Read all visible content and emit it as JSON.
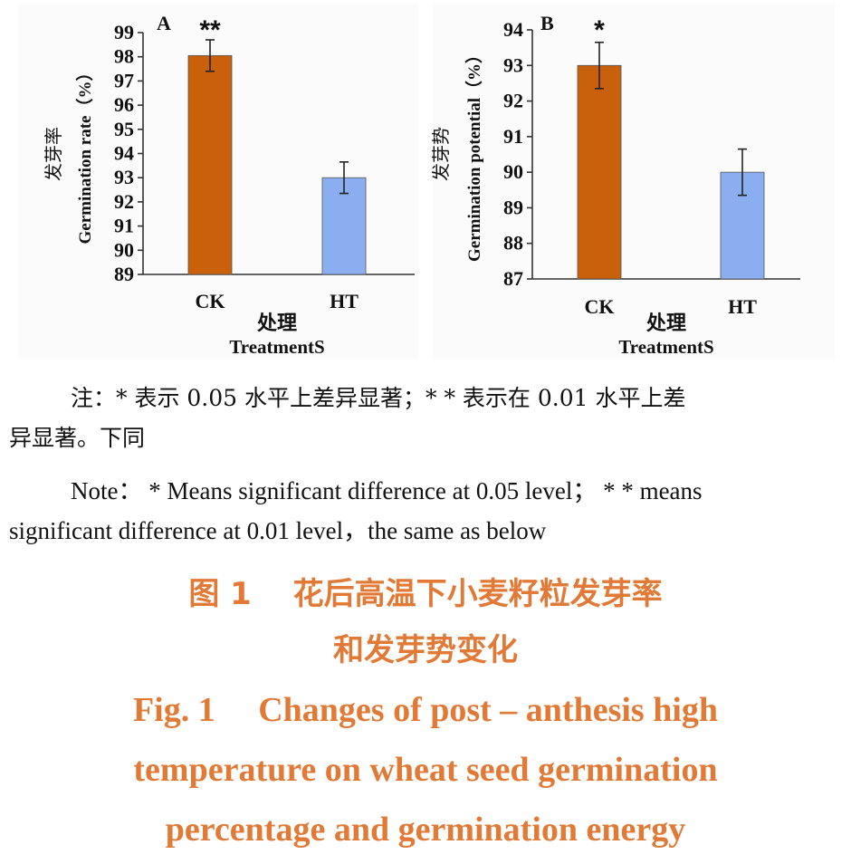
{
  "chart_data": [
    {
      "type": "bar",
      "panel": "A",
      "categories": [
        "CK",
        "HT"
      ],
      "values": [
        98.05,
        93.0
      ],
      "errors": [
        0.65,
        0.65
      ],
      "significance": [
        "**",
        ""
      ],
      "ylim": [
        89,
        99
      ],
      "yticks": [
        "99",
        "98",
        "97",
        "96",
        "95",
        "94",
        "93",
        "92",
        "91",
        "90",
        "89"
      ],
      "ylabel_zh": "发芽率",
      "ylabel": "Germination rate（%）",
      "xlabel_zh": "处理",
      "xlabel": "TreatmentS",
      "colors": [
        "#c8600c",
        "#8aaef0"
      ]
    },
    {
      "type": "bar",
      "panel": "B",
      "categories": [
        "CK",
        "HT"
      ],
      "values": [
        93.0,
        90.0
      ],
      "errors": [
        0.65,
        0.65
      ],
      "significance": [
        "*",
        ""
      ],
      "ylim": [
        87,
        94
      ],
      "yticks": [
        "94",
        "93",
        "92",
        "91",
        "90",
        "89",
        "88",
        "87"
      ],
      "ylabel_zh": "发芽势",
      "ylabel": "Germination potential（%）",
      "xlabel_zh": "处理",
      "xlabel": "TreatmentS",
      "colors": [
        "#c8600c",
        "#8aaef0"
      ]
    }
  ],
  "note_zh": {
    "line1": "注：* 表示 0.05 水平上差异显著；* * 表示在 0.01 水平上差",
    "line2": "异显著。下同"
  },
  "note_en": {
    "line1": "Note： * Means significant difference at 0.05 level； * * means",
    "line2": "significant difference at 0.01 level，the same as below"
  },
  "caption_zh": {
    "line1": "图 1　 花后高温下小麦籽粒发芽率",
    "line2": "和发芽势变化"
  },
  "caption_en": {
    "line1": "Fig. 1　 Changes of post – anthesis high",
    "line2": "temperature on wheat seed germination",
    "line3": "percentage and germination energy"
  }
}
